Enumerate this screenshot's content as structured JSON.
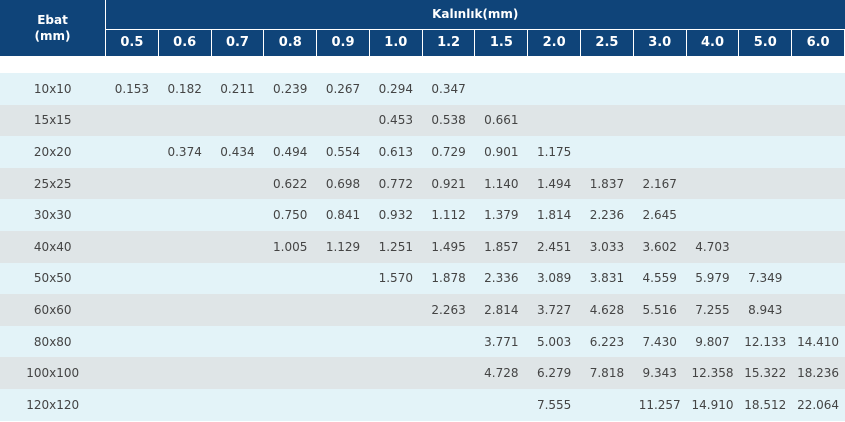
{
  "header": {
    "size_label": [
      "Ebat",
      "(mm)"
    ],
    "thickness_label": "Kalınlık(mm)",
    "thicknesses": [
      "0.5",
      "0.6",
      "0.7",
      "0.8",
      "0.9",
      "1.0",
      "1.2",
      "1.5",
      "2.0",
      "2.5",
      "3.0",
      "4.0",
      "5.0",
      "6.0"
    ]
  },
  "table": {
    "rows": [
      {
        "size": "10x10",
        "cells": [
          "0.153",
          "0.182",
          "0.211",
          "0.239",
          "0.267",
          "0.294",
          "0.347",
          null,
          null,
          null,
          null,
          null,
          null,
          null
        ]
      },
      {
        "size": "15x15",
        "cells": [
          null,
          null,
          null,
          null,
          null,
          "0.453",
          "0.538",
          "0.661",
          null,
          null,
          null,
          null,
          null,
          null
        ]
      },
      {
        "size": "20x20",
        "cells": [
          null,
          "0.374",
          "0.434",
          "0.494",
          "0.554",
          "0.613",
          "0.729",
          "0.901",
          "1.175",
          null,
          null,
          null,
          null,
          null
        ]
      },
      {
        "size": "25x25",
        "cells": [
          null,
          null,
          null,
          "0.622",
          "0.698",
          "0.772",
          "0.921",
          "1.140",
          "1.494",
          "1.837",
          "2.167",
          null,
          null,
          null
        ]
      },
      {
        "size": "30x30",
        "cells": [
          null,
          null,
          null,
          "0.750",
          "0.841",
          "0.932",
          "1.112",
          "1.379",
          "1.814",
          "2.236",
          "2.645",
          null,
          null,
          null
        ]
      },
      {
        "size": "40x40",
        "cells": [
          null,
          null,
          null,
          "1.005",
          "1.129",
          "1.251",
          "1.495",
          "1.857",
          "2.451",
          "3.033",
          "3.602",
          "4.703",
          null,
          null
        ]
      },
      {
        "size": "50x50",
        "cells": [
          null,
          null,
          null,
          null,
          null,
          "1.570",
          "1.878",
          "2.336",
          "3.089",
          "3.831",
          "4.559",
          "5.979",
          "7.349",
          null
        ]
      },
      {
        "size": "60x60",
        "cells": [
          null,
          null,
          null,
          null,
          null,
          null,
          "2.263",
          "2.814",
          "3.727",
          "4.628",
          "5.516",
          "7.255",
          "8.943",
          null
        ]
      },
      {
        "size": "80x80",
        "cells": [
          null,
          null,
          null,
          null,
          null,
          null,
          null,
          "3.771",
          "5.003",
          "6.223",
          "7.430",
          "9.807",
          "12.133",
          "14.410"
        ]
      },
      {
        "size": "100x100",
        "cells": [
          null,
          null,
          null,
          null,
          null,
          null,
          null,
          "4.728",
          "6.279",
          "7.818",
          "9.343",
          "12.358",
          "15.322",
          "18.236"
        ]
      },
      {
        "size": "120x120",
        "cells": [
          null,
          null,
          null,
          null,
          null,
          null,
          null,
          null,
          "7.555",
          null,
          "11.257",
          "14.910",
          "18.512",
          "22.064"
        ]
      }
    ]
  }
}
